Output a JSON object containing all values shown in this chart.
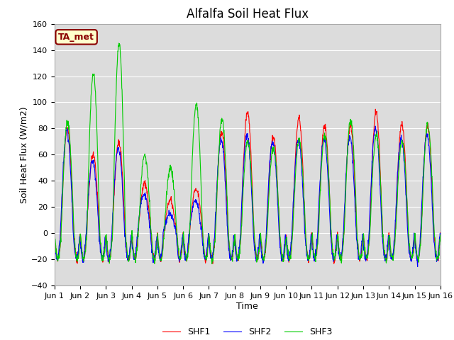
{
  "title": "Alfalfa Soil Heat Flux",
  "xlabel": "Time",
  "ylabel": "Soil Heat Flux (W/m2)",
  "ylim": [
    -40,
    160
  ],
  "xlim": [
    0,
    15
  ],
  "xtick_labels": [
    "Jun 1",
    "Jun 2",
    "Jun 3",
    "Jun 4",
    "Jun 5",
    "Jun 6",
    "Jun 7",
    "Jun 8",
    "Jun 9",
    "Jun 10",
    "Jun 11",
    "Jun 12",
    "Jun 13",
    "Jun 14",
    "Jun 15",
    "Jun 16"
  ],
  "xtick_positions": [
    0,
    1,
    2,
    3,
    4,
    5,
    6,
    7,
    8,
    9,
    10,
    11,
    12,
    13,
    14,
    15
  ],
  "annotation_text": "TA_met",
  "annotation_color": "#8B0000",
  "annotation_bg": "#FFFFCC",
  "line_colors": [
    "#FF0000",
    "#0000FF",
    "#00CC00"
  ],
  "line_labels": [
    "SHF1",
    "SHF2",
    "SHF3"
  ],
  "background_color": "#DCDCDC",
  "title_fontsize": 12,
  "axis_label_fontsize": 9,
  "tick_fontsize": 8,
  "legend_fontsize": 9,
  "grid_color": "#FFFFFF",
  "yticks": [
    -40,
    -20,
    0,
    20,
    40,
    60,
    80,
    100,
    120,
    140,
    160
  ],
  "shf1_peaks": [
    80,
    60,
    70,
    38,
    25,
    35,
    77,
    93,
    75,
    88,
    82,
    82,
    92,
    84,
    82
  ],
  "shf2_peaks": [
    78,
    55,
    65,
    30,
    15,
    25,
    72,
    75,
    70,
    72,
    72,
    74,
    80,
    72,
    75
  ],
  "shf3_peaks": [
    85,
    122,
    145,
    60,
    50,
    98,
    87,
    70,
    65,
    71,
    74,
    87,
    75,
    70,
    82
  ],
  "night_val": -20,
  "n_days": 15,
  "pts_per_day": 96
}
